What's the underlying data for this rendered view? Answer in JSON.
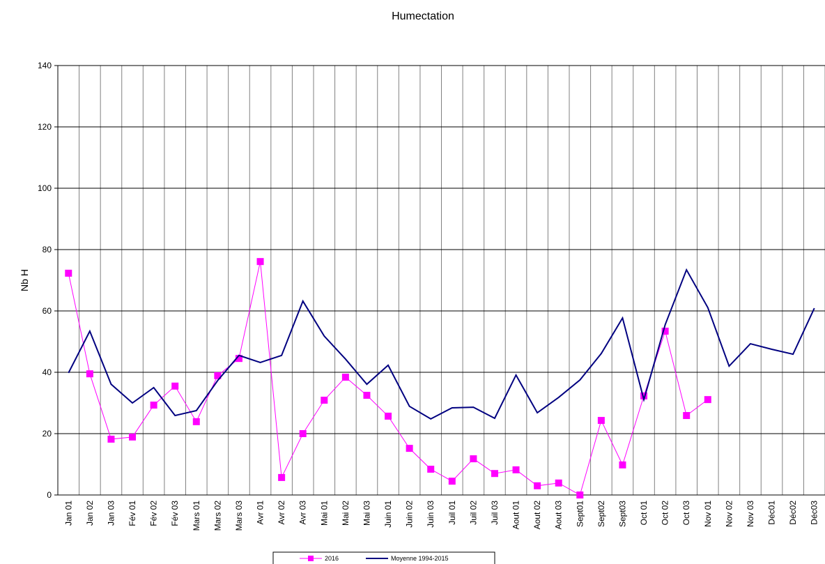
{
  "chart_data": {
    "type": "line",
    "title": "Humectation",
    "y_label": "Nb H",
    "categories": [
      "Jan 01",
      "Jan 02",
      "Jan 03",
      "Fév 01",
      "Fév 02",
      "Fév 03",
      "Mars 01",
      "Mars 02",
      "Mars 03",
      "Avr 01",
      "Avr 02",
      "Avr 03",
      "Mai 01",
      "Mai 02",
      "Mai 03",
      "Juin 01",
      "Juin 02",
      "Juin 03",
      "Juil 01",
      "Juil 02",
      "Juil 03",
      "Aout 01",
      "Aout 02",
      "Aout 03",
      "Sept01",
      "Sept02",
      "Sept03",
      "Oct 01",
      "Oct 02",
      "Oct 03",
      "Nov 01",
      "Nov 02",
      "Nov 03",
      "Déc01",
      "Déc02",
      "Déc03"
    ],
    "series": [
      {
        "name": "2016",
        "color": "#ff00ff",
        "marker": "square",
        "values": [
          72.3,
          39.5,
          18.2,
          18.9,
          29.3,
          35.5,
          23.9,
          38.9,
          44.5,
          76.1,
          5.7,
          20,
          30.9,
          38.4,
          32.5,
          25.7,
          15.2,
          8.4,
          4.5,
          11.8,
          7,
          8.2,
          3,
          3.9,
          0,
          24.3,
          9.8,
          32.3,
          53.4,
          25.9,
          31.1,
          null,
          null,
          null,
          null,
          null
        ]
      },
      {
        "name": "Moyenne 1994-2015",
        "color": "#000080",
        "marker": "none",
        "values": [
          39.8,
          53.4,
          36.1,
          30,
          35,
          25.9,
          27.5,
          37.3,
          45.5,
          43.2,
          45.5,
          63.2,
          51.8,
          44.3,
          36.1,
          42.3,
          28.9,
          24.8,
          28.4,
          28.6,
          25,
          39.1,
          26.8,
          31.8,
          37.5,
          46.1,
          57.7,
          31.1,
          55.5,
          73.4,
          61.1,
          42,
          49.3,
          47.5,
          45.9,
          60.9
        ]
      }
    ],
    "ylim": [
      0,
      140
    ],
    "yticks": [
      0,
      20,
      40,
      60,
      80,
      100,
      120,
      140
    ],
    "grid": true,
    "legend": "bottom"
  }
}
